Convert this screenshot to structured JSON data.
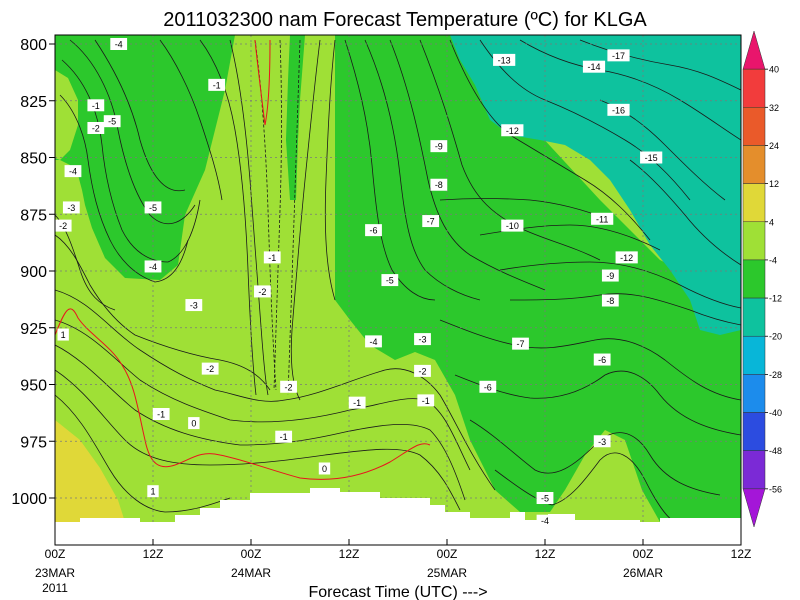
{
  "chart_data": {
    "type": "heatmap",
    "title": "2011032300 nam Forecast Temperature (ºC) for KLGA",
    "xlabel": "Forecast Time (UTC) --->",
    "ylabel": "",
    "x_ticks": [
      {
        "hours": 0,
        "label": "00Z",
        "sub": "23MAR",
        "sub2": "2011"
      },
      {
        "hours": 12,
        "label": "12Z",
        "sub": "",
        "sub2": ""
      },
      {
        "hours": 24,
        "label": "00Z",
        "sub": "24MAR",
        "sub2": ""
      },
      {
        "hours": 36,
        "label": "12Z",
        "sub": "",
        "sub2": ""
      },
      {
        "hours": 48,
        "label": "00Z",
        "sub": "25MAR",
        "sub2": ""
      },
      {
        "hours": 60,
        "label": "12Z",
        "sub": "",
        "sub2": ""
      },
      {
        "hours": 72,
        "label": "00Z",
        "sub": "26MAR",
        "sub2": ""
      },
      {
        "hours": 84,
        "label": "12Z",
        "sub": "",
        "sub2": ""
      }
    ],
    "y_ticks": [
      800,
      825,
      850,
      875,
      900,
      925,
      950,
      975,
      1000
    ],
    "xlim_hours": [
      0,
      84
    ],
    "ylim_hpa": [
      795,
      1016
    ],
    "grid": true,
    "colorbar": {
      "labels": [
        "40",
        "32",
        "24",
        "12",
        "4",
        "-4",
        "-12",
        "-20",
        "-28",
        "-40",
        "-48",
        "-56"
      ],
      "colors": [
        "#e9156c",
        "#f23c3c",
        "#ea5a2a",
        "#e48e2c",
        "#e0d838",
        "#9fe036",
        "#2cc82c",
        "#0ec29e",
        "#08b6d8",
        "#1c8cec",
        "#2c4ce0",
        "#7b2ad6",
        "#a416d8"
      ]
    },
    "fill_regions": [
      {
        "band": "4",
        "color": "#e0d838"
      },
      {
        "band": "-4",
        "color": "#9fe036"
      },
      {
        "band": "-12",
        "color": "#2cc82c"
      },
      {
        "band": "-20",
        "color": "#0ec29e"
      }
    ],
    "contour_labels": [
      {
        "t": 7.8,
        "p": 800,
        "v": "-4"
      },
      {
        "t": 19.8,
        "p": 818,
        "v": "-1"
      },
      {
        "t": 5.0,
        "p": 827,
        "v": "-1"
      },
      {
        "t": 5.0,
        "p": 837,
        "v": "-2"
      },
      {
        "t": 7.0,
        "p": 834,
        "v": "-5"
      },
      {
        "t": 2.2,
        "p": 856,
        "v": "-4"
      },
      {
        "t": 2.0,
        "p": 872,
        "v": "-3"
      },
      {
        "t": 1.0,
        "p": 880,
        "v": "-2"
      },
      {
        "t": 12.0,
        "p": 872,
        "v": "-5"
      },
      {
        "t": 12.0,
        "p": 898,
        "v": "-4"
      },
      {
        "t": 17.0,
        "p": 915,
        "v": "-3"
      },
      {
        "t": 1.0,
        "p": 928,
        "v": "1"
      },
      {
        "t": 19.0,
        "p": 943,
        "v": "-2"
      },
      {
        "t": 26.6,
        "p": 894,
        "v": "-1"
      },
      {
        "t": 25.4,
        "p": 909,
        "v": "-2"
      },
      {
        "t": 13.0,
        "p": 963,
        "v": "-1"
      },
      {
        "t": 17.0,
        "p": 967,
        "v": "0"
      },
      {
        "t": 12.0,
        "p": 997,
        "v": "1"
      },
      {
        "t": 28.6,
        "p": 951,
        "v": "-2"
      },
      {
        "t": 28.0,
        "p": 973,
        "v": "-1"
      },
      {
        "t": 33.0,
        "p": 987,
        "v": "0"
      },
      {
        "t": 37.0,
        "p": 958,
        "v": "-1"
      },
      {
        "t": 39.0,
        "p": 882,
        "v": "-6"
      },
      {
        "t": 41.0,
        "p": 904,
        "v": "-5"
      },
      {
        "t": 39.0,
        "p": 931,
        "v": "-4"
      },
      {
        "t": 45.0,
        "p": 930,
        "v": "-3"
      },
      {
        "t": 45.0,
        "p": 944,
        "v": "-2"
      },
      {
        "t": 45.4,
        "p": 957,
        "v": "-1"
      },
      {
        "t": 46.0,
        "p": 878,
        "v": "-7"
      },
      {
        "t": 47.0,
        "p": 862,
        "v": "-8"
      },
      {
        "t": 47.0,
        "p": 845,
        "v": "-9"
      },
      {
        "t": 55.0,
        "p": 807,
        "v": "-13"
      },
      {
        "t": 56.0,
        "p": 838,
        "v": "-12"
      },
      {
        "t": 56.0,
        "p": 880,
        "v": "-10"
      },
      {
        "t": 57.0,
        "p": 932,
        "v": "-7"
      },
      {
        "t": 53.0,
        "p": 951,
        "v": "-6"
      },
      {
        "t": 60.0,
        "p": 1000,
        "v": "-5"
      },
      {
        "t": 60.0,
        "p": 1010,
        "v": "-4"
      },
      {
        "t": 66.0,
        "p": 810,
        "v": "-14"
      },
      {
        "t": 69.0,
        "p": 805,
        "v": "-17"
      },
      {
        "t": 69.0,
        "p": 829,
        "v": "-16"
      },
      {
        "t": 73.0,
        "p": 850,
        "v": "-15"
      },
      {
        "t": 67.0,
        "p": 877,
        "v": "-11"
      },
      {
        "t": 70.0,
        "p": 894,
        "v": "-12"
      },
      {
        "t": 68.0,
        "p": 902,
        "v": "-9"
      },
      {
        "t": 68.0,
        "p": 913,
        "v": "-8"
      },
      {
        "t": 67.0,
        "p": 939,
        "v": "-6"
      },
      {
        "t": 67.0,
        "p": 975,
        "v": "-3"
      }
    ]
  }
}
